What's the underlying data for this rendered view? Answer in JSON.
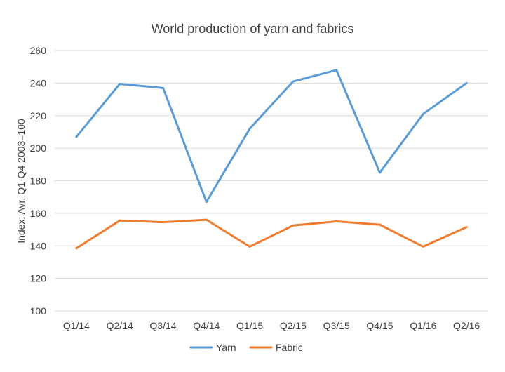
{
  "chart_data": {
    "type": "line",
    "title": "World production of yarn and fabrics",
    "xlabel": "",
    "ylabel": "Index: Avr. Q1-Q4 2003=100",
    "categories": [
      "Q1/14",
      "Q2/14",
      "Q3/14",
      "Q4/14",
      "Q1/15",
      "Q2/15",
      "Q3/15",
      "Q4/15",
      "Q1/16",
      "Q2/16"
    ],
    "ylim": [
      100,
      260
    ],
    "yticks": [
      "100",
      "120",
      "140",
      "160",
      "180",
      "200",
      "220",
      "240",
      "260"
    ],
    "grid": true,
    "legend_position": "bottom",
    "series": [
      {
        "name": "Yarn",
        "color": "#5b9bd5",
        "values": [
          207,
          239.5,
          237,
          167,
          212,
          241,
          248,
          185,
          221,
          240
        ]
      },
      {
        "name": "Fabric",
        "color": "#ed7d31",
        "values": [
          138.5,
          155.5,
          154.5,
          156,
          139.5,
          152.5,
          155,
          153,
          139.5,
          151.5
        ]
      }
    ]
  }
}
